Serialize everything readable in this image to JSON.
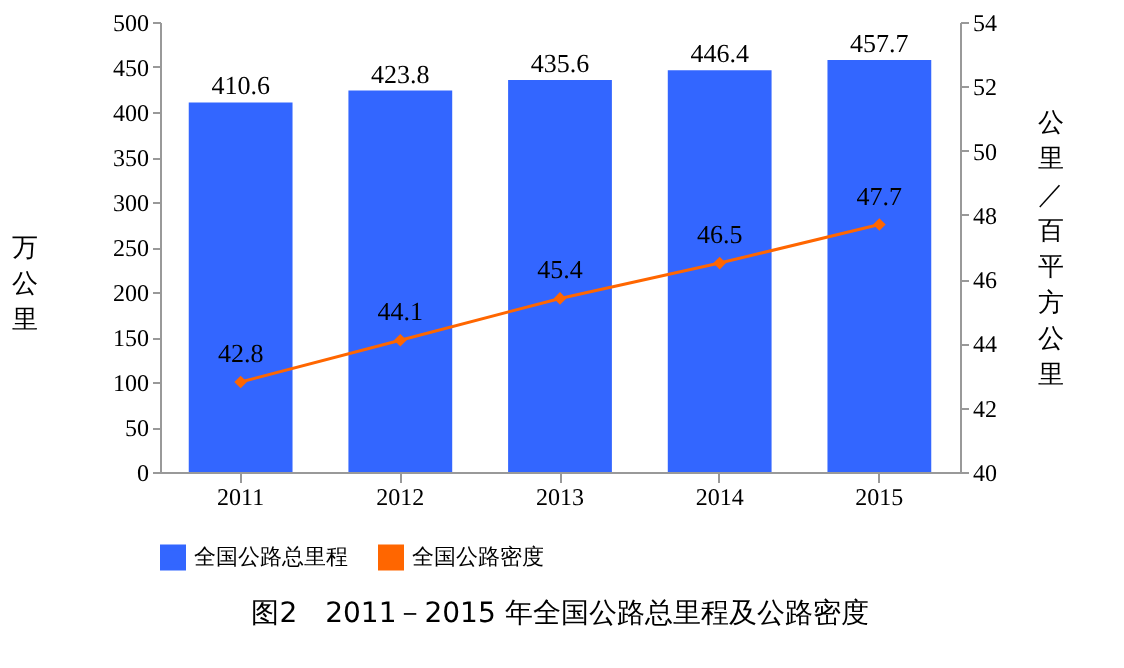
{
  "chart_data": {
    "type": "bar",
    "title": "图2　2011－2015 年全国公路总里程及公路密度",
    "categories": [
      "2011",
      "2012",
      "2013",
      "2014",
      "2015"
    ],
    "series": [
      {
        "name": "全国公路总里程",
        "color": "#3366ff",
        "values": [
          410.6,
          423.8,
          435.6,
          446.4,
          457.7
        ]
      },
      {
        "name": "全国公路密度",
        "type": "line",
        "axis": "y2",
        "color": "#ff6600",
        "marker": "diamond",
        "values": [
          42.8,
          44.1,
          45.4,
          46.5,
          47.7
        ]
      }
    ],
    "ylabel": "万公里",
    "y2label": "公里／百平方公里",
    "ylim": [
      0,
      500
    ],
    "yticks": [
      0,
      50,
      100,
      150,
      200,
      250,
      300,
      350,
      400,
      450,
      500
    ],
    "y2lim": [
      40,
      54
    ],
    "y2ticks": [
      40,
      42,
      44,
      46,
      48,
      50,
      52,
      54
    ],
    "data_labels": true,
    "legend": "bottom",
    "grid": false
  }
}
